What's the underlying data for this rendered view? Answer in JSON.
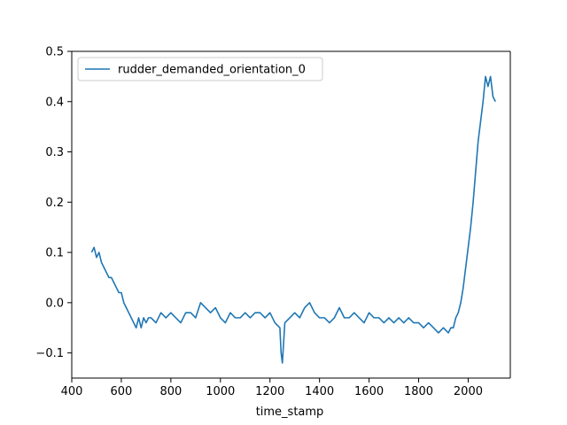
{
  "chart_data": {
    "type": "line",
    "title": "",
    "xlabel": "time_stamp",
    "ylabel": "",
    "xlim": [
      400,
      2170
    ],
    "ylim": [
      -0.15,
      0.5
    ],
    "x_ticks": [
      400,
      600,
      800,
      1000,
      1200,
      1400,
      1600,
      1800,
      2000
    ],
    "x_tick_labels": [
      "400",
      "600",
      "800",
      "1000",
      "1200",
      "1400",
      "1600",
      "1800",
      "2000"
    ],
    "y_ticks": [
      -0.1,
      0.0,
      0.1,
      0.2,
      0.3,
      0.4,
      0.5
    ],
    "y_tick_labels": [
      "−0.1",
      "0.0",
      "0.1",
      "0.2",
      "0.3",
      "0.4",
      "0.5"
    ],
    "grid": false,
    "legend_position": "upper-left",
    "series": [
      {
        "name": "rudder_demanded_orientation_0",
        "color": "#1f77b4",
        "x": [
          480,
          490,
          500,
          510,
          520,
          530,
          540,
          550,
          560,
          570,
          580,
          590,
          600,
          610,
          620,
          630,
          640,
          650,
          660,
          670,
          680,
          690,
          700,
          710,
          720,
          740,
          760,
          780,
          800,
          820,
          840,
          860,
          880,
          900,
          920,
          940,
          960,
          980,
          1000,
          1020,
          1040,
          1060,
          1080,
          1100,
          1120,
          1140,
          1160,
          1180,
          1200,
          1220,
          1240,
          1245,
          1250,
          1255,
          1260,
          1280,
          1300,
          1320,
          1340,
          1360,
          1380,
          1400,
          1420,
          1440,
          1460,
          1480,
          1500,
          1520,
          1540,
          1560,
          1580,
          1600,
          1620,
          1640,
          1660,
          1680,
          1700,
          1720,
          1740,
          1760,
          1780,
          1800,
          1820,
          1840,
          1860,
          1880,
          1900,
          1920,
          1930,
          1940,
          1950,
          1960,
          1970,
          1980,
          1990,
          2000,
          2010,
          2020,
          2030,
          2040,
          2050,
          2060,
          2070,
          2080,
          2090,
          2100,
          2110
        ],
        "y": [
          0.1,
          0.11,
          0.09,
          0.1,
          0.08,
          0.07,
          0.06,
          0.05,
          0.05,
          0.04,
          0.03,
          0.02,
          0.02,
          0.0,
          -0.01,
          -0.02,
          -0.03,
          -0.04,
          -0.05,
          -0.03,
          -0.05,
          -0.03,
          -0.04,
          -0.03,
          -0.03,
          -0.04,
          -0.02,
          -0.03,
          -0.02,
          -0.03,
          -0.04,
          -0.02,
          -0.02,
          -0.03,
          0.0,
          -0.01,
          -0.02,
          -0.01,
          -0.03,
          -0.04,
          -0.02,
          -0.03,
          -0.03,
          -0.02,
          -0.03,
          -0.02,
          -0.02,
          -0.03,
          -0.02,
          -0.04,
          -0.05,
          -0.1,
          -0.12,
          -0.08,
          -0.04,
          -0.03,
          -0.02,
          -0.03,
          -0.01,
          0.0,
          -0.02,
          -0.03,
          -0.03,
          -0.04,
          -0.03,
          -0.01,
          -0.03,
          -0.03,
          -0.02,
          -0.03,
          -0.04,
          -0.02,
          -0.03,
          -0.03,
          -0.04,
          -0.03,
          -0.04,
          -0.03,
          -0.04,
          -0.03,
          -0.04,
          -0.04,
          -0.05,
          -0.04,
          -0.05,
          -0.06,
          -0.05,
          -0.06,
          -0.05,
          -0.05,
          -0.03,
          -0.02,
          0.0,
          0.03,
          0.07,
          0.11,
          0.15,
          0.2,
          0.26,
          0.32,
          0.36,
          0.4,
          0.45,
          0.43,
          0.45,
          0.41,
          0.4
        ]
      }
    ]
  }
}
